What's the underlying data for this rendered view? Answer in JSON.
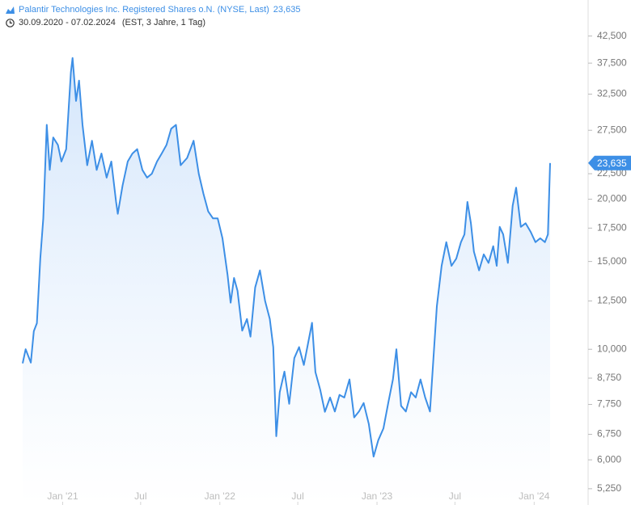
{
  "chart_data": {
    "type": "line",
    "title": "Palantir Technologies Inc. Registered Shares o.N. (NYSE, Last)",
    "last_label": "23,635",
    "subtitle": "30.09.2020 - 07.02.2024",
    "subtitle_note": "(EST, 3 Jahre, 1 Tag)",
    "log_scale": true,
    "xlim": [
      "2020-09-30",
      "2024-02-07"
    ],
    "ylim": [
      4.87,
      50.2
    ],
    "xticks": [
      {
        "value": "2021-01-01",
        "label": "Jan '21"
      },
      {
        "value": "2021-07-01",
        "label": "Jul"
      },
      {
        "value": "2022-01-01",
        "label": "Jan '22"
      },
      {
        "value": "2022-07-01",
        "label": "Jul"
      },
      {
        "value": "2023-01-01",
        "label": "Jan '23"
      },
      {
        "value": "2023-07-01",
        "label": "Jul"
      },
      {
        "value": "2024-01-01",
        "label": "Jan '24"
      }
    ],
    "yticks": [
      {
        "value": 42.5,
        "label": "42,500"
      },
      {
        "value": 37.5,
        "label": "37,500"
      },
      {
        "value": 32.5,
        "label": "32,500"
      },
      {
        "value": 27.5,
        "label": "27,500"
      },
      {
        "value": 22.5,
        "label": "22,500"
      },
      {
        "value": 20,
        "label": "20,000"
      },
      {
        "value": 17.5,
        "label": "17,500"
      },
      {
        "value": 15,
        "label": "15,000"
      },
      {
        "value": 12.5,
        "label": "12,500"
      },
      {
        "value": 10,
        "label": "10,000"
      },
      {
        "value": 8.75,
        "label": "8,750"
      },
      {
        "value": 7.75,
        "label": "7,750"
      },
      {
        "value": 6.75,
        "label": "6,750"
      },
      {
        "value": 6,
        "label": "6,000"
      },
      {
        "value": 5.25,
        "label": "5,250"
      }
    ],
    "x": [
      "2020-09-30",
      "2020-10-07",
      "2020-10-19",
      "2020-10-26",
      "2020-11-02",
      "2020-11-10",
      "2020-11-17",
      "2020-11-25",
      "2020-12-02",
      "2020-12-10",
      "2020-12-21",
      "2020-12-29",
      "2021-01-09",
      "2021-01-20",
      "2021-01-24",
      "2021-02-01",
      "2021-02-08",
      "2021-02-16",
      "2021-02-27",
      "2021-03-10",
      "2021-03-21",
      "2021-04-01",
      "2021-04-13",
      "2021-04-24",
      "2021-05-05",
      "2021-05-09",
      "2021-05-20",
      "2021-06-01",
      "2021-06-12",
      "2021-06-23",
      "2021-07-05",
      "2021-07-16",
      "2021-07-27",
      "2021-08-08",
      "2021-08-19",
      "2021-08-30",
      "2021-09-10",
      "2021-09-21",
      "2021-10-02",
      "2021-10-17",
      "2021-11-01",
      "2021-11-13",
      "2021-11-24",
      "2021-12-05",
      "2021-12-16",
      "2021-12-27",
      "2022-01-07",
      "2022-01-19",
      "2022-01-26",
      "2022-02-03",
      "2022-02-11",
      "2022-02-22",
      "2022-03-05",
      "2022-03-13",
      "2022-03-24",
      "2022-04-04",
      "2022-04-16",
      "2022-04-27",
      "2022-05-05",
      "2022-05-12",
      "2022-05-20",
      "2022-05-31",
      "2022-06-11",
      "2022-06-23",
      "2022-07-04",
      "2022-07-15",
      "2022-07-27",
      "2022-08-03",
      "2022-08-11",
      "2022-08-22",
      "2022-09-02",
      "2022-09-14",
      "2022-09-25",
      "2022-10-06",
      "2022-10-17",
      "2022-10-29",
      "2022-11-09",
      "2022-11-20",
      "2022-12-01",
      "2022-12-13",
      "2022-12-24",
      "2023-01-04",
      "2023-01-16",
      "2023-01-27",
      "2023-02-07",
      "2023-02-15",
      "2023-02-26",
      "2023-03-09",
      "2023-03-21",
      "2023-04-01",
      "2023-04-12",
      "2023-04-23",
      "2023-05-04",
      "2023-05-12",
      "2023-05-20",
      "2023-05-31",
      "2023-06-11",
      "2023-06-23",
      "2023-07-04",
      "2023-07-15",
      "2023-07-23",
      "2023-07-30",
      "2023-08-07",
      "2023-08-14",
      "2023-08-26",
      "2023-09-06",
      "2023-09-17",
      "2023-09-28",
      "2023-10-06",
      "2023-10-13",
      "2023-10-21",
      "2023-11-01",
      "2023-11-12",
      "2023-11-20",
      "2023-12-01",
      "2023-12-12",
      "2023-12-24",
      "2024-01-04",
      "2024-01-15",
      "2024-01-26",
      "2024-02-02",
      "2024-02-07"
    ],
    "series": [
      {
        "name": "Palantir",
        "color": "#3d8fe6",
        "values": [
          9.37,
          10.0,
          9.4,
          10.87,
          11.28,
          15.2,
          18.3,
          28.2,
          22.9,
          26.6,
          25.7,
          23.8,
          25.2,
          35.9,
          38.4,
          31.5,
          34.6,
          28.2,
          23.4,
          26.2,
          22.9,
          24.7,
          22.1,
          23.8,
          19.75,
          18.7,
          21.3,
          23.8,
          24.7,
          25.2,
          22.9,
          22.1,
          22.5,
          23.8,
          24.7,
          25.7,
          27.7,
          28.2,
          23.4,
          24.2,
          26.2,
          22.5,
          20.5,
          18.9,
          18.3,
          18.3,
          16.7,
          14.1,
          12.4,
          13.9,
          13.1,
          10.9,
          11.5,
          10.6,
          13.3,
          14.4,
          12.5,
          11.5,
          10.1,
          6.69,
          8.2,
          9.02,
          7.77,
          9.6,
          10.1,
          9.3,
          10.5,
          11.3,
          9.0,
          8.3,
          7.49,
          8.0,
          7.5,
          8.1,
          8.0,
          8.7,
          7.3,
          7.5,
          7.8,
          7.08,
          6.09,
          6.57,
          6.94,
          7.8,
          8.7,
          10.0,
          7.7,
          7.5,
          8.2,
          8.0,
          8.7,
          8.0,
          7.5,
          9.6,
          12.2,
          14.7,
          16.4,
          14.7,
          15.2,
          16.4,
          17.0,
          19.75,
          17.9,
          15.7,
          14.4,
          15.5,
          14.9,
          16.1,
          14.7,
          17.6,
          17.0,
          14.9,
          19.4,
          21.1,
          17.6,
          17.9,
          17.2,
          16.4,
          16.7,
          16.4,
          17.0,
          23.635
        ]
      }
    ]
  }
}
